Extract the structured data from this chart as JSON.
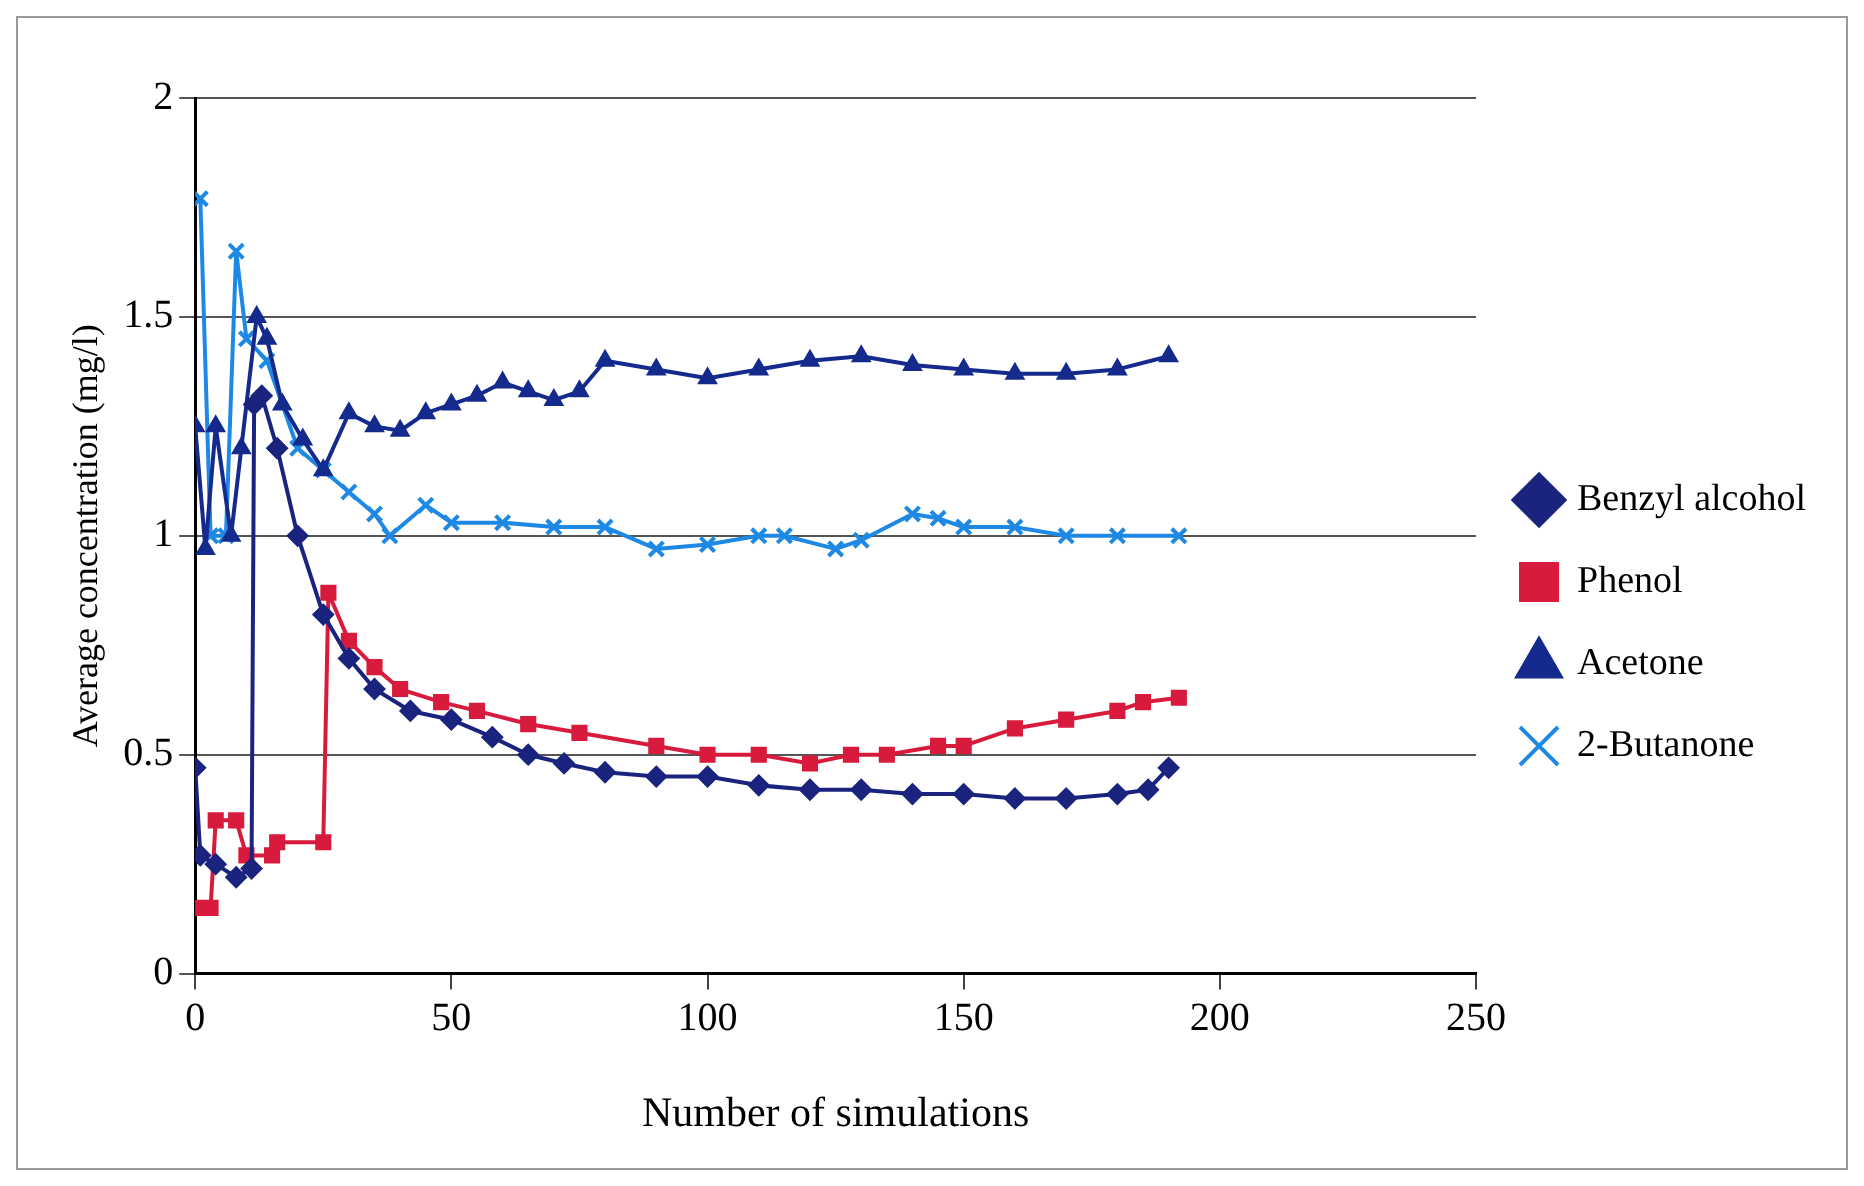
{
  "chart_data": {
    "type": "line",
    "xlabel": "Number of simulations",
    "ylabel": "Average concentration (mg/l)",
    "xlim": [
      0,
      250
    ],
    "xticks": [
      0,
      50,
      100,
      150,
      200,
      250
    ],
    "ylim": [
      0,
      2
    ],
    "yticks": [
      0,
      0.5,
      1,
      1.5,
      2
    ],
    "grid": "y",
    "legend": "right",
    "series": [
      {
        "name": "Benzyl alcohol",
        "color": "#1a237e",
        "marker": "diamond",
        "x": [
          0,
          1,
          4,
          8,
          11,
          11.5,
          13,
          16,
          20,
          25,
          30,
          35,
          42,
          50,
          58,
          65,
          72,
          80,
          90,
          100,
          110,
          120,
          130,
          140,
          150,
          160,
          170,
          180,
          186,
          190
        ],
        "values": [
          0.47,
          0.27,
          0.25,
          0.22,
          0.24,
          1.3,
          1.32,
          1.2,
          1.0,
          0.82,
          0.72,
          0.65,
          0.6,
          0.58,
          0.54,
          0.5,
          0.48,
          0.46,
          0.45,
          0.45,
          0.43,
          0.42,
          0.42,
          0.41,
          0.41,
          0.4,
          0.4,
          0.41,
          0.42,
          0.47
        ]
      },
      {
        "name": "Phenol",
        "color": "#d81b3c",
        "marker": "square",
        "x": [
          0,
          3,
          4,
          8,
          10,
          15,
          16,
          25,
          26,
          30,
          35,
          40,
          48,
          55,
          65,
          75,
          90,
          100,
          110,
          120,
          128,
          135,
          145,
          150,
          160,
          170,
          180,
          185,
          192
        ],
        "values": [
          0.15,
          0.15,
          0.35,
          0.35,
          0.27,
          0.27,
          0.3,
          0.3,
          0.87,
          0.76,
          0.7,
          0.65,
          0.62,
          0.6,
          0.57,
          0.55,
          0.52,
          0.5,
          0.5,
          0.48,
          0.5,
          0.5,
          0.52,
          0.52,
          0.56,
          0.58,
          0.6,
          0.62,
          0.63
        ]
      },
      {
        "name": "Acetone",
        "color": "#142a8c",
        "marker": "triangle",
        "x": [
          0,
          2,
          4,
          7,
          9,
          12,
          14,
          17,
          21,
          25,
          30,
          35,
          40,
          45,
          50,
          55,
          60,
          65,
          70,
          75,
          80,
          90,
          100,
          110,
          120,
          130,
          140,
          150,
          160,
          170,
          180,
          190
        ],
        "values": [
          1.25,
          0.97,
          1.25,
          1.0,
          1.2,
          1.5,
          1.45,
          1.3,
          1.22,
          1.15,
          1.28,
          1.25,
          1.24,
          1.28,
          1.3,
          1.32,
          1.35,
          1.33,
          1.31,
          1.33,
          1.4,
          1.38,
          1.36,
          1.38,
          1.4,
          1.41,
          1.39,
          1.38,
          1.37,
          1.37,
          1.38,
          1.41
        ]
      },
      {
        "name": "2-Butanone",
        "color": "#1e88e5",
        "marker": "cross",
        "x": [
          1,
          3,
          6,
          8,
          10,
          14,
          20,
          25,
          30,
          35,
          38,
          45,
          50,
          60,
          70,
          80,
          90,
          100,
          110,
          115,
          125,
          130,
          140,
          145,
          150,
          160,
          170,
          180,
          192
        ],
        "values": [
          1.77,
          1.0,
          1.0,
          1.65,
          1.45,
          1.4,
          1.2,
          1.15,
          1.1,
          1.05,
          1.0,
          1.07,
          1.03,
          1.03,
          1.02,
          1.02,
          0.97,
          0.98,
          1.0,
          1.0,
          0.97,
          0.99,
          1.05,
          1.04,
          1.02,
          1.02,
          1.0,
          1.0,
          1.0
        ]
      }
    ]
  }
}
